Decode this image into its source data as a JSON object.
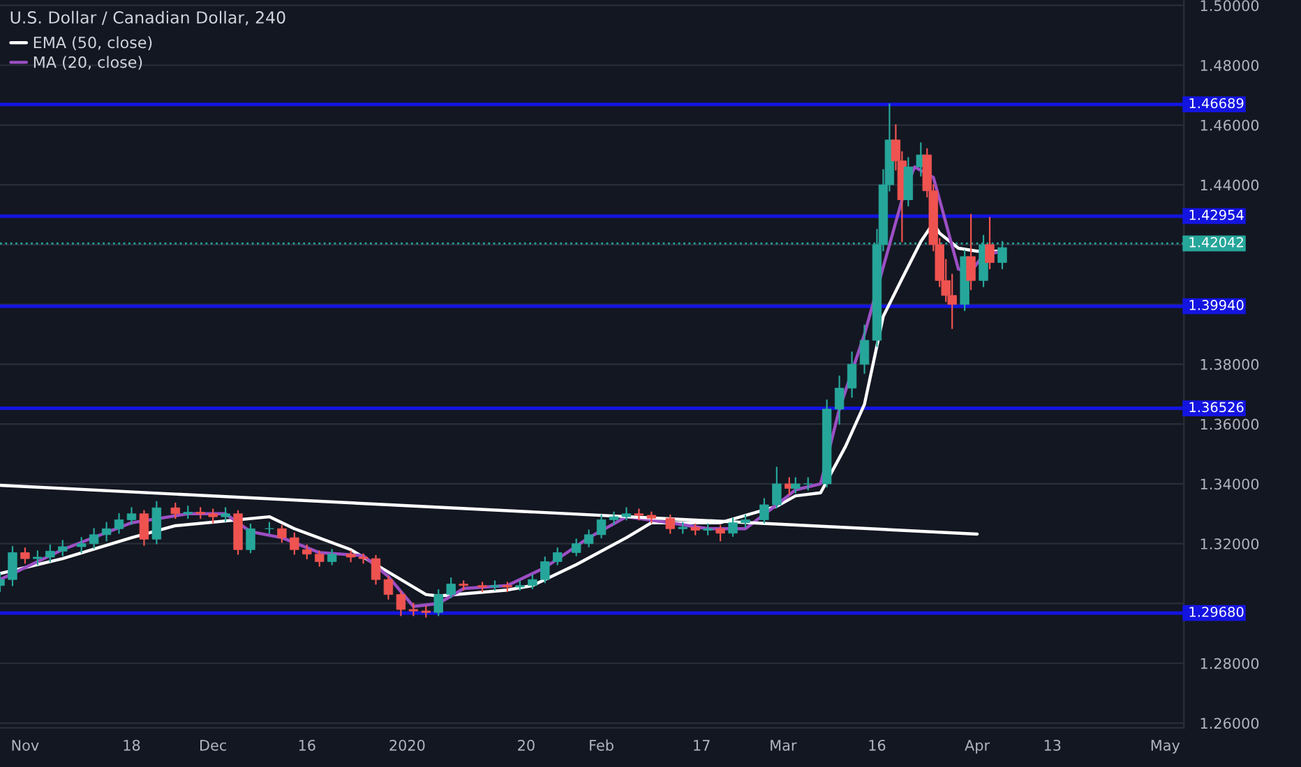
{
  "chart_data": {
    "type": "candlestick",
    "title": "U.S. Dollar / Canadian Dollar, 240",
    "x": [
      "2019-10-28",
      "2019-10-30",
      "2019-11-01",
      "2019-11-03",
      "2019-11-05",
      "2019-11-07",
      "2019-11-10",
      "2019-11-12",
      "2019-11-14",
      "2019-11-16",
      "2019-11-18",
      "2019-11-20",
      "2019-11-22",
      "2019-11-25",
      "2019-11-27",
      "2019-11-29",
      "2019-12-01",
      "2019-12-03",
      "2019-12-05",
      "2019-12-07",
      "2019-12-10",
      "2019-12-12",
      "2019-12-14",
      "2019-12-16",
      "2019-12-18",
      "2019-12-20",
      "2019-12-23",
      "2019-12-25",
      "2019-12-27",
      "2019-12-29",
      "2019-12-31",
      "2020-01-02",
      "2020-01-04",
      "2020-01-06",
      "2020-01-08",
      "2020-01-10",
      "2020-01-13",
      "2020-01-15",
      "2020-01-17",
      "2020-01-19",
      "2020-01-21",
      "2020-01-23",
      "2020-01-25",
      "2020-01-28",
      "2020-01-30",
      "2020-02-01",
      "2020-02-03",
      "2020-02-05",
      "2020-02-07",
      "2020-02-09",
      "2020-02-12",
      "2020-02-14",
      "2020-02-16",
      "2020-02-18",
      "2020-02-20",
      "2020-02-22",
      "2020-02-24",
      "2020-02-27",
      "2020-02-29",
      "2020-03-02",
      "2020-03-03",
      "2020-03-05",
      "2020-03-08",
      "2020-03-10",
      "2020-03-12",
      "2020-03-14",
      "2020-03-16",
      "2020-03-17",
      "2020-03-18",
      "2020-03-19",
      "2020-03-20",
      "2020-03-21",
      "2020-03-23",
      "2020-03-24",
      "2020-03-25",
      "2020-03-26",
      "2020-03-27",
      "2020-03-28",
      "2020-03-30",
      "2020-03-31",
      "2020-04-02",
      "2020-04-03",
      "2020-04-05"
    ],
    "ohlc": [
      [
        1.306,
        1.31,
        1.304,
        1.308
      ],
      [
        1.308,
        1.319,
        1.306,
        1.317
      ],
      [
        1.317,
        1.3185,
        1.3135,
        1.315
      ],
      [
        1.315,
        1.3175,
        1.313,
        1.3155
      ],
      [
        1.3155,
        1.3195,
        1.314,
        1.3175
      ],
      [
        1.3175,
        1.321,
        1.316,
        1.319
      ],
      [
        1.319,
        1.322,
        1.317,
        1.32
      ],
      [
        1.32,
        1.325,
        1.3185,
        1.323
      ],
      [
        1.323,
        1.327,
        1.321,
        1.325
      ],
      [
        1.325,
        1.33,
        1.3235,
        1.328
      ],
      [
        1.328,
        1.332,
        1.3265,
        1.33
      ],
      [
        1.33,
        1.331,
        1.3195,
        1.3215
      ],
      [
        1.3215,
        1.334,
        1.32,
        1.332
      ],
      [
        1.332,
        1.3335,
        1.3285,
        1.33
      ],
      [
        1.33,
        1.3325,
        1.3285,
        1.3305
      ],
      [
        1.3305,
        1.332,
        1.3285,
        1.33
      ],
      [
        1.33,
        1.3315,
        1.327,
        1.329
      ],
      [
        1.329,
        1.332,
        1.3275,
        1.33
      ],
      [
        1.33,
        1.331,
        1.3165,
        1.318
      ],
      [
        1.318,
        1.3265,
        1.317,
        1.325
      ],
      [
        1.325,
        1.327,
        1.3235,
        1.325
      ],
      [
        1.325,
        1.326,
        1.3205,
        1.322
      ],
      [
        1.322,
        1.3235,
        1.3165,
        1.318
      ],
      [
        1.318,
        1.3195,
        1.315,
        1.3165
      ],
      [
        1.3165,
        1.3175,
        1.3125,
        1.314
      ],
      [
        1.314,
        1.318,
        1.313,
        1.3165
      ],
      [
        1.3165,
        1.3175,
        1.314,
        1.3155
      ],
      [
        1.3155,
        1.3165,
        1.3135,
        1.315
      ],
      [
        1.315,
        1.316,
        1.3065,
        1.308
      ],
      [
        1.308,
        1.309,
        1.3015,
        1.303
      ],
      [
        1.303,
        1.304,
        1.296,
        1.298
      ],
      [
        1.298,
        1.3,
        1.296,
        1.2975
      ],
      [
        1.2975,
        1.299,
        1.2955,
        1.297
      ],
      [
        1.297,
        1.3045,
        1.296,
        1.303
      ],
      [
        1.303,
        1.3085,
        1.302,
        1.3065
      ],
      [
        1.3065,
        1.3075,
        1.3045,
        1.306
      ],
      [
        1.306,
        1.307,
        1.304,
        1.3055
      ],
      [
        1.3055,
        1.3075,
        1.3045,
        1.306
      ],
      [
        1.306,
        1.307,
        1.304,
        1.3055
      ],
      [
        1.3055,
        1.3075,
        1.3045,
        1.306
      ],
      [
        1.306,
        1.3095,
        1.305,
        1.308
      ],
      [
        1.308,
        1.3155,
        1.307,
        1.314
      ],
      [
        1.314,
        1.3185,
        1.313,
        1.317
      ],
      [
        1.317,
        1.3215,
        1.316,
        1.32
      ],
      [
        1.32,
        1.3245,
        1.319,
        1.323
      ],
      [
        1.323,
        1.3295,
        1.322,
        1.328
      ],
      [
        1.328,
        1.3305,
        1.3265,
        1.329
      ],
      [
        1.329,
        1.332,
        1.328,
        1.33
      ],
      [
        1.33,
        1.3315,
        1.328,
        1.3295
      ],
      [
        1.3295,
        1.3305,
        1.327,
        1.3285
      ],
      [
        1.3285,
        1.3295,
        1.3235,
        1.325
      ],
      [
        1.325,
        1.327,
        1.3235,
        1.3255
      ],
      [
        1.3255,
        1.3265,
        1.323,
        1.3245
      ],
      [
        1.3245,
        1.3265,
        1.323,
        1.325
      ],
      [
        1.325,
        1.326,
        1.321,
        1.3235
      ],
      [
        1.3235,
        1.3285,
        1.3225,
        1.327
      ],
      [
        1.327,
        1.3295,
        1.3255,
        1.328
      ],
      [
        1.328,
        1.335,
        1.327,
        1.333
      ],
      [
        1.333,
        1.3455,
        1.332,
        1.34
      ],
      [
        1.34,
        1.342,
        1.3365,
        1.3385
      ],
      [
        1.3385,
        1.342,
        1.337,
        1.34
      ],
      [
        1.34,
        1.342,
        1.338,
        1.34
      ],
      [
        1.34,
        1.368,
        1.339,
        1.365
      ],
      [
        1.365,
        1.376,
        1.36,
        1.372
      ],
      [
        1.372,
        1.384,
        1.369,
        1.38
      ],
      [
        1.38,
        1.393,
        1.377,
        1.388
      ],
      [
        1.388,
        1.425,
        1.386,
        1.42
      ],
      [
        1.42,
        1.445,
        1.418,
        1.44
      ],
      [
        1.44,
        1.467,
        1.438,
        1.455
      ],
      [
        1.455,
        1.46,
        1.445,
        1.448
      ],
      [
        1.448,
        1.451,
        1.421,
        1.435
      ],
      [
        1.435,
        1.449,
        1.433,
        1.446
      ],
      [
        1.446,
        1.454,
        1.443,
        1.45
      ],
      [
        1.45,
        1.452,
        1.436,
        1.438
      ],
      [
        1.438,
        1.44,
        1.418,
        1.42
      ],
      [
        1.42,
        1.422,
        1.406,
        1.408
      ],
      [
        1.408,
        1.415,
        1.401,
        1.403
      ],
      [
        1.403,
        1.41,
        1.392,
        1.4
      ],
      [
        1.4,
        1.418,
        1.398,
        1.416
      ],
      [
        1.416,
        1.43,
        1.405,
        1.408
      ],
      [
        1.408,
        1.423,
        1.406,
        1.42
      ],
      [
        1.42,
        1.429,
        1.412,
        1.414
      ],
      [
        1.414,
        1.421,
        1.412,
        1.419
      ]
    ],
    "series": [
      {
        "type": "line",
        "name": "EMA (50, close)",
        "color": "#ffffff",
        "x": [
          "2019-10-28",
          "2019-11-07",
          "2019-11-18",
          "2019-11-25",
          "2019-12-10",
          "2019-12-14",
          "2019-12-23",
          "2020-01-04",
          "2020-01-06",
          "2020-01-17",
          "2020-01-21",
          "2020-01-28",
          "2020-02-05",
          "2020-02-09",
          "2020-02-20",
          "2020-02-29",
          "2020-03-03",
          "2020-03-07",
          "2020-03-11",
          "2020-03-14",
          "2020-03-17",
          "2020-03-20",
          "2020-03-23",
          "2020-03-25",
          "2020-03-26",
          "2020-03-29",
          "2020-04-01",
          "2020-04-05"
        ],
        "values": [
          1.31,
          1.315,
          1.322,
          1.326,
          1.329,
          1.325,
          1.318,
          1.303,
          1.3025,
          1.3045,
          1.306,
          1.313,
          1.322,
          1.327,
          1.327,
          1.3325,
          1.336,
          1.337,
          1.3526,
          1.3666,
          1.396,
          1.4086,
          1.421,
          1.4272,
          1.4238,
          1.4188,
          1.4178,
          1.4178
        ]
      },
      {
        "type": "line",
        "name": "MA (20, close)",
        "color": "#9c4fc4",
        "x": [
          "2019-10-28",
          "2019-11-07",
          "2019-11-18",
          "2019-11-27",
          "2019-12-03",
          "2019-12-07",
          "2019-12-12",
          "2019-12-18",
          "2019-12-25",
          "2019-12-29",
          "2020-01-02",
          "2020-01-06",
          "2020-01-10",
          "2020-01-17",
          "2020-01-23",
          "2020-01-30",
          "2020-02-05",
          "2020-02-12",
          "2020-02-18",
          "2020-02-24",
          "2020-02-29",
          "2020-03-03",
          "2020-03-07",
          "2020-03-10",
          "2020-03-14",
          "2020-03-20",
          "2020-03-22",
          "2020-03-25",
          "2020-03-26",
          "2020-03-29",
          "2020-03-31",
          "2020-04-02",
          "2020-04-05"
        ],
        "values": [
          1.308,
          1.318,
          1.327,
          1.33,
          1.33,
          1.324,
          1.322,
          1.317,
          1.316,
          1.309,
          1.299,
          1.3,
          1.305,
          1.306,
          1.312,
          1.322,
          1.329,
          1.327,
          1.325,
          1.325,
          1.333,
          1.338,
          1.34,
          1.365,
          1.39,
          1.435,
          1.446,
          1.4425,
          1.435,
          1.4118,
          1.411,
          1.4165,
          1.4178
        ]
      },
      {
        "type": "line",
        "color": "#ffffff",
        "x": [
          "2019-10-28",
          "2020-04-01"
        ],
        "values": [
          1.3395,
          1.3232
        ]
      }
    ],
    "ref_lines": [
      {
        "axis": "y",
        "value": 1.46689,
        "label": "1.46689",
        "color": "#1414e0",
        "line_style": "solid"
      },
      {
        "axis": "y",
        "value": 1.42954,
        "label": "1.42954",
        "color": "#1414e0",
        "line_style": "solid"
      },
      {
        "axis": "y",
        "value": 1.42042,
        "label": "1.42042",
        "color": "#26a69a",
        "line_style": "dotted"
      },
      {
        "axis": "y",
        "value": 1.3994,
        "label": "1.39940",
        "color": "#1414e0",
        "line_style": "solid"
      },
      {
        "axis": "y",
        "value": 1.36526,
        "label": "1.36526",
        "color": "#1414e0",
        "line_style": "solid"
      },
      {
        "axis": "y",
        "value": 1.2968,
        "label": "1.29680",
        "color": "#1414e0",
        "line_style": "solid"
      }
    ],
    "xlim": [
      "2019-10-28",
      "2020-05-04"
    ],
    "xticks": [
      {
        "value": "2019-11-01",
        "label": "Nov"
      },
      {
        "value": "2019-11-18",
        "label": "18"
      },
      {
        "value": "2019-12-01",
        "label": "Dec"
      },
      {
        "value": "2019-12-16",
        "label": "16"
      },
      {
        "value": "2020-01-01",
        "label": "2020"
      },
      {
        "value": "2020-01-20",
        "label": "20"
      },
      {
        "value": "2020-02-01",
        "label": "Feb"
      },
      {
        "value": "2020-02-17",
        "label": "17"
      },
      {
        "value": "2020-03-01",
        "label": "Mar"
      },
      {
        "value": "2020-03-16",
        "label": "16"
      },
      {
        "value": "2020-04-01",
        "label": "Apr"
      },
      {
        "value": "2020-04-13",
        "label": "13"
      },
      {
        "value": "2020-05-01",
        "label": "May"
      }
    ],
    "ylim": [
      1.2584,
      1.5018
    ],
    "yticks": [
      {
        "value": 1.26,
        "label": "1.26000"
      },
      {
        "value": 1.28,
        "label": "1.28000"
      },
      {
        "value": 1.3,
        "label": null
      },
      {
        "value": 1.32,
        "label": "1.32000"
      },
      {
        "value": 1.34,
        "label": "1.34000"
      },
      {
        "value": 1.36,
        "label": "1.36000"
      },
      {
        "value": 1.38,
        "label": "1.38000"
      },
      {
        "value": 1.4,
        "label": null
      },
      {
        "value": 1.42,
        "label": null
      },
      {
        "value": 1.44,
        "label": "1.44000"
      },
      {
        "value": 1.46,
        "label": "1.46000"
      },
      {
        "value": 1.48,
        "label": "1.48000"
      },
      {
        "value": 1.5,
        "label": "1.50000"
      }
    ],
    "grid": "y",
    "legend": "top left"
  }
}
